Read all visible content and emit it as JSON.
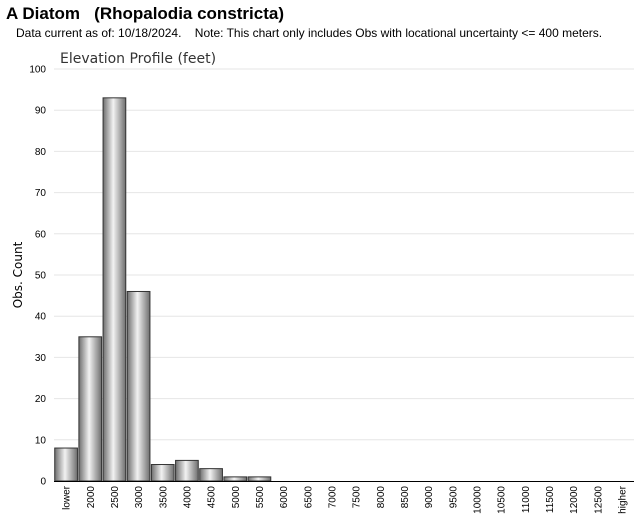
{
  "page": {
    "title": "A Diatom   (Rhopalodia constricta)",
    "note": "Data current as of: 10/18/2024.    Note: This chart only includes Obs with locational uncertainty <= 400 meters."
  },
  "colors": {
    "bar_fill_dark": "#6e6e6e",
    "bar_fill_light": "#f2f2f2",
    "bar_stroke": "#333333",
    "grid": "#e6e6e6",
    "axis": "#000000"
  },
  "chart_data": {
    "type": "bar",
    "title": "Elevation Profile (feet)",
    "xlabel": "",
    "ylabel": "Obs. Count",
    "ylim": [
      0,
      100
    ],
    "yticks": [
      0,
      10,
      20,
      30,
      40,
      50,
      60,
      70,
      80,
      90,
      100
    ],
    "grid": true,
    "categories": [
      "lower",
      "2000",
      "2500",
      "3000",
      "3500",
      "4000",
      "4500",
      "5000",
      "5500",
      "6000",
      "6500",
      "7000",
      "7500",
      "8000",
      "8500",
      "9000",
      "9500",
      "10000",
      "10500",
      "11000",
      "11500",
      "12000",
      "12500",
      "higher"
    ],
    "values": [
      8,
      35,
      93,
      46,
      4,
      5,
      3,
      1,
      1,
      0,
      0,
      0,
      0,
      0,
      0,
      0,
      0,
      0,
      0,
      0,
      0,
      0,
      0,
      0
    ]
  }
}
